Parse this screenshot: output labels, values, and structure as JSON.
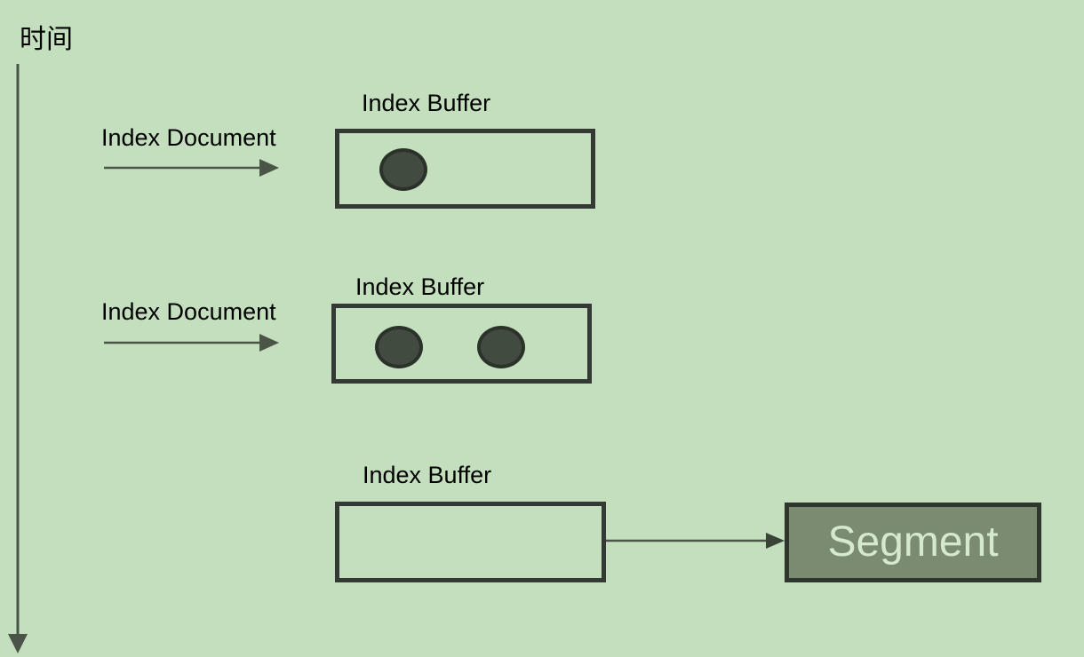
{
  "timeline": {
    "label": "时间"
  },
  "steps": [
    {
      "action_label": "Index Document",
      "buffer_label": "Index Buffer",
      "documents": 1
    },
    {
      "action_label": "Index Document",
      "buffer_label": "Index Buffer",
      "documents": 2
    },
    {
      "buffer_label": "Index Buffer",
      "documents": 0
    }
  ],
  "segment": {
    "label": "Segment"
  },
  "colors": {
    "background": "#c4dfbd",
    "line": "#4a5547",
    "box_border": "#343a33",
    "document_fill": "#424b40",
    "segment_fill": "#7b8b72",
    "segment_text": "#d4e9cd"
  }
}
